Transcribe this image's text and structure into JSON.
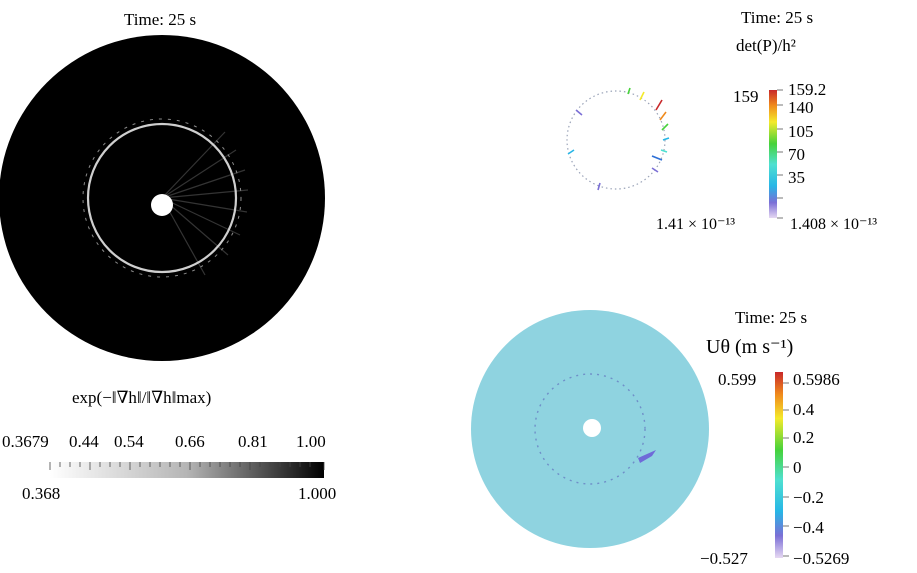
{
  "panel1": {
    "time_label": "Time: 25 s",
    "colorbar_title": "exp(−‖∇h‖/‖∇h‖max)",
    "tick_labels": [
      "0.3679",
      "0.44",
      "0.54",
      "0.66",
      "0.81",
      "1.00"
    ],
    "range_min": "0.368",
    "range_max": "1.000"
  },
  "panel2": {
    "time_label": "Time: 25 s",
    "colorbar_title": "det(P)/h²",
    "max_left": "159",
    "tick_labels": [
      "159.2",
      "140",
      "105",
      "70",
      "35"
    ],
    "min_left": "1.41 × 10⁻¹³",
    "min_right": "1.408 × 10⁻¹³"
  },
  "panel3": {
    "time_label": "Time: 25 s",
    "colorbar_title": "Uθ (m s⁻¹)",
    "max_left": "0.599",
    "tick_labels": [
      "0.5986",
      "0.4",
      "0.2",
      "0",
      "−0.2",
      "−0.4"
    ],
    "min_left": "−0.527",
    "min_right": "−0.5269"
  },
  "colors": {
    "domain_dark": "#000000",
    "ring_light": "#c8c8c8",
    "velocity_field": "#8fd3e0",
    "velocity_negative": "#6f6ad8"
  }
}
